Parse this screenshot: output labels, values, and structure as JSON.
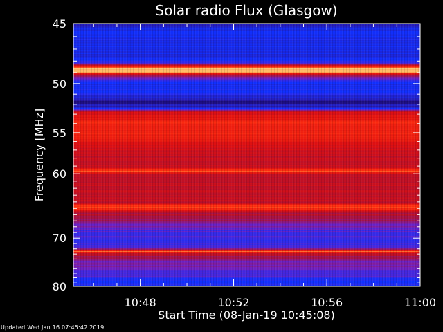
{
  "chart_data": {
    "type": "heatmap",
    "title": "Solar radio Flux (Glasgow)",
    "xlabel": "Start Time (08-Jan-19 10:45:08)",
    "ylabel": "Frequency [MHz]",
    "x_ticks": [
      "10:48",
      "10:52",
      "10:56",
      "11:00"
    ],
    "x_tick_values": [
      10.8,
      10.8667,
      10.9333,
      11.0
    ],
    "xlim": [
      10.7522,
      11.0
    ],
    "y_ticks": [
      "45",
      "50",
      "55",
      "60",
      "70",
      "80"
    ],
    "y_tick_values": [
      45,
      50,
      55,
      60,
      70,
      80
    ],
    "ylim": [
      45,
      80
    ],
    "y_scale": "reciprocal",
    "colormap": [
      "#10004a",
      "#2a1ab0",
      "#1030ff",
      "#7020c0",
      "#b01030",
      "#e01010",
      "#ff3010",
      "#ff9040",
      "#ffffa0"
    ],
    "intensity_bands": [
      {
        "f": 45.0,
        "v": 0.15
      },
      {
        "f": 45.8,
        "v": 0.25
      },
      {
        "f": 46.5,
        "v": 0.22
      },
      {
        "f": 47.6,
        "v": 0.2
      },
      {
        "f": 48.2,
        "v": 0.35
      },
      {
        "f": 48.6,
        "v": 0.9
      },
      {
        "f": 48.9,
        "v": 0.95
      },
      {
        "f": 49.2,
        "v": 0.45
      },
      {
        "f": 50.0,
        "v": 0.22
      },
      {
        "f": 51.0,
        "v": 0.25
      },
      {
        "f": 51.6,
        "v": 0.08
      },
      {
        "f": 52.2,
        "v": 0.15
      },
      {
        "f": 52.8,
        "v": 0.62
      },
      {
        "f": 53.5,
        "v": 0.68
      },
      {
        "f": 54.5,
        "v": 0.72
      },
      {
        "f": 55.5,
        "v": 0.66
      },
      {
        "f": 56.5,
        "v": 0.58
      },
      {
        "f": 58.0,
        "v": 0.55
      },
      {
        "f": 59.2,
        "v": 0.6
      },
      {
        "f": 59.6,
        "v": 0.78
      },
      {
        "f": 60.0,
        "v": 0.55
      },
      {
        "f": 62.0,
        "v": 0.56
      },
      {
        "f": 64.0,
        "v": 0.54
      },
      {
        "f": 64.8,
        "v": 0.8
      },
      {
        "f": 65.5,
        "v": 0.52
      },
      {
        "f": 66.5,
        "v": 0.48
      },
      {
        "f": 67.5,
        "v": 0.4
      },
      {
        "f": 68.5,
        "v": 0.33
      },
      {
        "f": 70.0,
        "v": 0.3
      },
      {
        "f": 71.5,
        "v": 0.32
      },
      {
        "f": 72.2,
        "v": 0.5
      },
      {
        "f": 72.5,
        "v": 0.95
      },
      {
        "f": 72.8,
        "v": 0.55
      },
      {
        "f": 74.0,
        "v": 0.42
      },
      {
        "f": 76.0,
        "v": 0.36
      },
      {
        "f": 78.0,
        "v": 0.3
      },
      {
        "f": 80.0,
        "v": 0.25
      }
    ],
    "grid": false,
    "legend": "none"
  },
  "footer": {
    "updated": "Updated Wed Jan 16 07:45:42 2019"
  }
}
